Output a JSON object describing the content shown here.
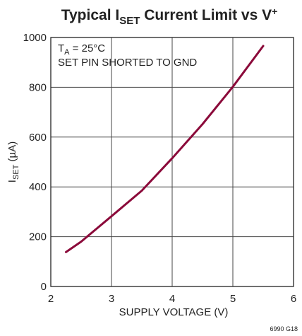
{
  "chart_data": {
    "type": "line",
    "title_parts": [
      "Typical I",
      "SET",
      " Current Limit vs V",
      "+"
    ],
    "x_label": "SUPPLY VOLTAGE (V)",
    "y_label_parts": [
      "I",
      "SET",
      " (µA)"
    ],
    "annotation_parts": [
      "T",
      "A",
      " = 25°C"
    ],
    "annotation_line2": "SET PIN SHORTED TO GND",
    "footnote": "6990 G18",
    "xlim": [
      2,
      6
    ],
    "xticks": [
      2,
      3,
      4,
      5,
      6
    ],
    "ylim": [
      0,
      1000
    ],
    "yticks": [
      0,
      200,
      400,
      600,
      800,
      1000
    ],
    "grid": true,
    "series": [
      {
        "color": "#8b0a3a",
        "x": [
          2.25,
          2.5,
          3,
          3.5,
          4,
          4.5,
          5,
          5.5
        ],
        "values": [
          138,
          180,
          282,
          385,
          515,
          652,
          802,
          966
        ]
      }
    ]
  }
}
